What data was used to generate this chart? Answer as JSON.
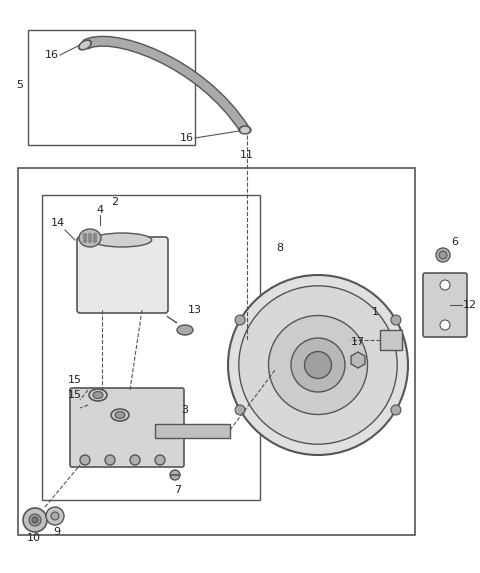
{
  "title": "",
  "background_color": "#ffffff",
  "line_color": "#555555",
  "text_color": "#222222",
  "fig_width": 4.8,
  "fig_height": 5.73,
  "dpi": 100,
  "parts": {
    "hose_label": "5",
    "hose_top_label": "16",
    "hose_bottom_label": "16",
    "vacuum_line_label": "11",
    "reservoir_label": "4",
    "cap_label": "14",
    "fluid_sensor_label": "13",
    "master_cyl_label": "2",
    "grommet1_label": "15",
    "grommet2_label": "15",
    "pushrod_label": "3",
    "screw_label": "7",
    "booster_label": "8",
    "check_valve_label": "1",
    "nut_label": "17",
    "bracket_label": "12",
    "bolt_label": "6",
    "stud_label": "10",
    "washer_label": "9"
  }
}
